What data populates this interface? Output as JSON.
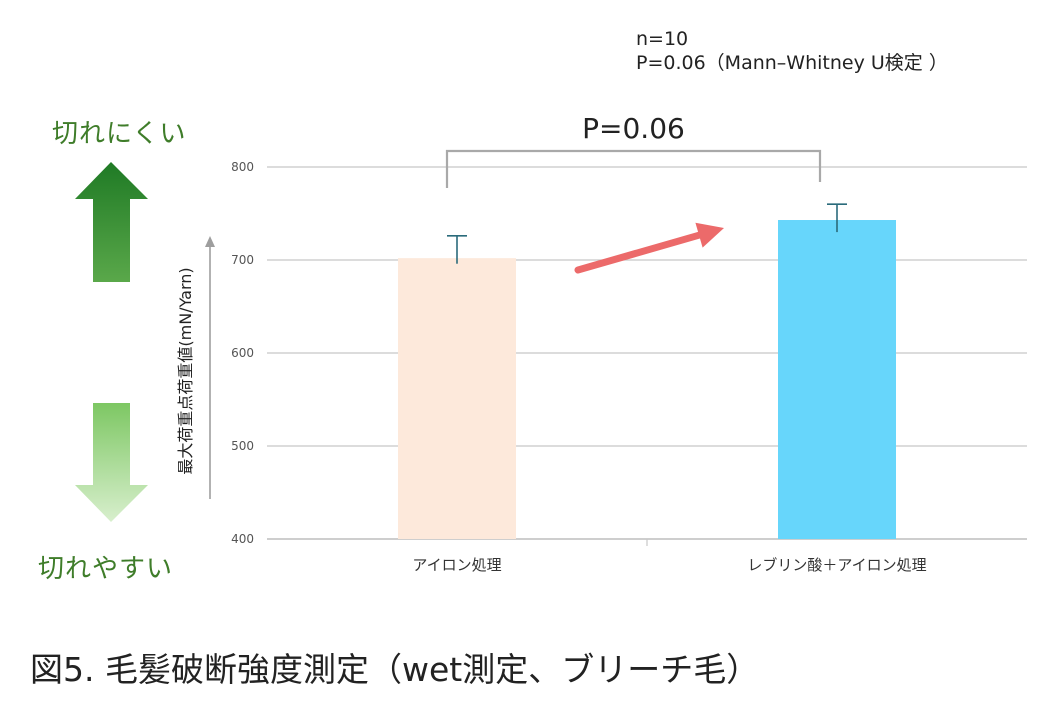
{
  "notes": {
    "line1": "n=10",
    "line2": "P=0.06（Mann–Whitney U検定 ）"
  },
  "indicators": {
    "top_label": "切れにくい",
    "bottom_label": "切れやすい",
    "up_color": "#1f7a25",
    "down_color": "#7dc763"
  },
  "caption": "図5. 毛髪破断強度測定（wet測定、ブリーチ毛）",
  "chart_data": {
    "type": "bar",
    "categories": [
      "アイロン処理",
      "レブリン酸＋アイロン処理"
    ],
    "values": [
      702,
      743
    ],
    "error_plus": [
      24,
      17
    ],
    "error_minus": [
      6,
      13
    ],
    "colors": [
      "#fde9db",
      "#67d6fb"
    ],
    "error_color": "#2a6b7b",
    "ylabel": "最大荷重点荷重値(mN/Yarn)",
    "ylim": [
      400,
      800
    ],
    "yticks": [
      400,
      500,
      600,
      700,
      800
    ],
    "ytick_labels": [
      "400",
      "500",
      "600",
      "700",
      "800"
    ],
    "grid": true,
    "significance": {
      "label": "P=0.06",
      "between": [
        0,
        1
      ]
    },
    "trend_arrow_color": "#ec6a6a"
  }
}
